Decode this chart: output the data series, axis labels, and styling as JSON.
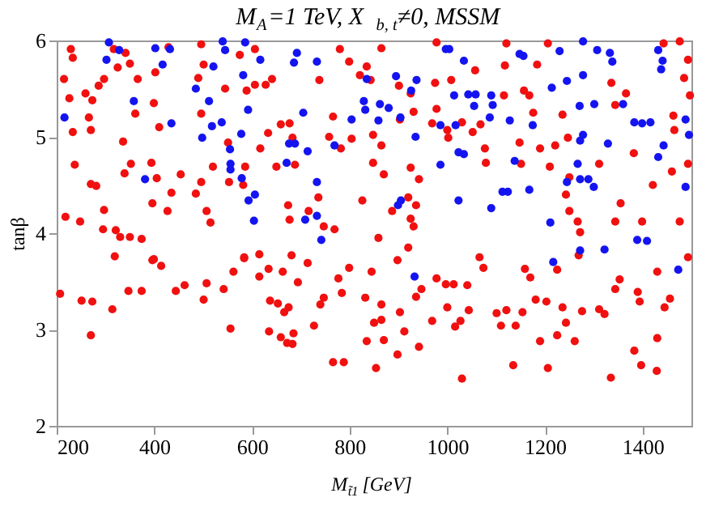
{
  "chart_data": {
    "type": "scatter",
    "title": "M$_{A}$=1 TeV, X$_{b, t}$≠0, MSSM",
    "xlabel": "M$_{t̃1}$ [GeV]",
    "ylabel": "tanβ",
    "xlim": [
      200,
      1500
    ],
    "xticks": [
      200,
      400,
      600,
      800,
      1000,
      1200,
      1400
    ],
    "ylim": [
      2,
      6
    ],
    "yticks": [
      2,
      3,
      4,
      5,
      6
    ],
    "grid": false,
    "legend": false,
    "marker": "circle",
    "series": [
      {
        "color": "#f01010",
        "x": [
          229,
          233,
          215,
          226,
          233,
          237,
          218,
          248,
          270,
          266,
          259,
          273,
          270,
          281,
          286,
          297,
          317,
          325,
          341,
          366,
          350,
          361,
          336,
          352,
          339,
          297,
          295,
          321,
          330,
          350,
          374,
          399,
          402,
          410,
          394,
          405,
          396,
          435,
          429,
          427,
          454,
          496,
          501,
          490,
          496,
          496,
          520,
          485,
          507,
          515,
          545,
          551,
          553,
          575,
          589,
          606,
          606,
          628,
          617,
          586,
          582,
          641,
          633,
          659,
          677,
          683,
          688,
          650,
          674,
          677,
          716,
          736,
          738,
          758,
          782,
          747,
          780,
          799,
          821,
          766,
          804,
          826,
          843,
          769,
          319,
          399,
          584,
          615,
          681,
          865,
          835,
          901,
          925,
          903,
          931,
          848,
          865,
          848,
          870,
          925,
          942,
          920,
          936,
          925,
          859,
          887,
          931,
          978,
          975,
          978,
          969,
          1002,
          1008,
          1000,
          1030,
          1052,
          1057,
          1068,
          1077,
          1079,
          1121,
          1118,
          1116,
          1157,
          1168,
          1148,
          1151,
          1176,
          1184,
          1190,
          1206,
          1221,
          1210,
          1236,
          1247,
          1250,
          1243,
          1250,
          1267,
          1272,
          1311,
          1336,
          1366,
          1344,
          1344,
          1355,
          1382,
          1399,
          1443,
          1476,
          1463,
          1465,
          1493,
          1485,
          1497,
          1493,
          1476,
          1460,
          1421,
          207,
          251,
          273,
          270,
          314,
          347,
          374,
          396,
          414,
          444,
          462,
          501,
          507,
          542,
          556,
          562,
          584,
          615,
          634,
          637,
          653,
          663,
          635,
          659,
          666,
          675,
          672,
          683,
          685,
          694,
          714,
          727,
          740,
          747,
          766,
          777,
          784,
          788,
          799,
          832,
          835,
          850,
          854,
          845,
          865,
          870,
          865,
          898,
          920,
          903,
          912,
          898,
          936,
          947,
          942,
          969,
          978,
          997,
          1000,
          1013,
          1016,
          1027,
          1030,
          1041,
          1044,
          1066,
          1074,
          1101,
          1110,
          1121,
          1135,
          1140,
          1154,
          1159,
          1170,
          1181,
          1190,
          1203,
          1206,
          1225,
          1236,
          1243,
          1225,
          1261,
          1269,
          1276,
          1311,
          1322,
          1335,
          1344,
          1353,
          1383,
          1390,
          1394,
          1397,
          1430,
          1430,
          1429,
          1445,
          1456,
          1493
        ],
        "values": [
          5.91,
          5.82,
          5.6,
          5.4,
          5.05,
          4.71,
          4.17,
          4.12,
          5.07,
          5.2,
          5.45,
          5.38,
          4.51,
          4.49,
          5.53,
          5.6,
          5.91,
          5.72,
          5.87,
          5.6,
          5.76,
          5.24,
          4.95,
          4.72,
          4.62,
          4.24,
          4.04,
          4.03,
          3.96,
          3.96,
          3.94,
          5.35,
          5.67,
          5.1,
          4.73,
          4.57,
          4.31,
          4.42,
          5.93,
          4.23,
          4.61,
          5.96,
          5.75,
          5.61,
          5.24,
          4.53,
          4.69,
          4.41,
          4.23,
          4.11,
          5.5,
          4.94,
          4.53,
          5.85,
          5.48,
          5.91,
          5.54,
          5.54,
          4.88,
          4.69,
          4.5,
          5.6,
          5.04,
          5.13,
          5.14,
          4.99,
          4.71,
          4.69,
          4.29,
          4.14,
          4.23,
          4.37,
          5.59,
          5.0,
          4.88,
          4.07,
          5.91,
          5.78,
          5.64,
          5.21,
          4.98,
          4.34,
          5.59,
          4.04,
          3.76,
          3.73,
          3.74,
          3.78,
          3.77,
          5.92,
          5.73,
          5.53,
          5.45,
          5.18,
          5.26,
          5.02,
          4.91,
          4.73,
          4.61,
          4.68,
          4.56,
          4.37,
          4.29,
          4.15,
          3.95,
          4.23,
          4.07,
          5.98,
          5.56,
          5.29,
          5.14,
          4.99,
          5.59,
          5.07,
          5.15,
          5.05,
          5.69,
          5.13,
          4.88,
          4.73,
          5.97,
          5.74,
          5.43,
          5.48,
          5.43,
          4.94,
          4.72,
          5.25,
          5.75,
          4.88,
          5.97,
          4.91,
          4.69,
          5.23,
          4.99,
          4.58,
          4.4,
          4.23,
          4.12,
          4.01,
          4.72,
          5.56,
          5.45,
          5.33,
          4.12,
          4.31,
          4.83,
          4.12,
          5.97,
          5.99,
          5.22,
          5.07,
          5.8,
          5.61,
          5.43,
          4.72,
          4.12,
          4.64,
          4.5,
          3.37,
          3.3,
          3.29,
          2.94,
          3.21,
          3.4,
          3.4,
          3.72,
          3.66,
          3.4,
          3.46,
          3.31,
          3.48,
          3.42,
          3.01,
          3.6,
          3.75,
          3.55,
          3.63,
          3.3,
          3.27,
          3.6,
          2.98,
          2.92,
          3.18,
          3.23,
          2.86,
          2.85,
          2.96,
          3.49,
          3.69,
          3.04,
          3.26,
          3.33,
          2.66,
          3.53,
          3.38,
          2.66,
          3.64,
          3.33,
          2.88,
          3.07,
          2.6,
          3.6,
          3.1,
          2.89,
          3.26,
          3.72,
          3.85,
          3.18,
          2.98,
          2.74,
          3.34,
          3.42,
          2.82,
          3.09,
          3.53,
          3.47,
          3.23,
          3.47,
          3.03,
          3.09,
          2.49,
          3.46,
          3.2,
          3.75,
          3.64,
          3.17,
          3.04,
          3.2,
          2.63,
          3.04,
          3.18,
          3.63,
          3.54,
          3.31,
          2.88,
          3.29,
          2.6,
          3.62,
          3.23,
          3.07,
          2.94,
          2.88,
          3.77,
          3.19,
          3.21,
          3.16,
          2.5,
          3.42,
          3.52,
          2.78,
          3.39,
          3.29,
          2.63,
          3.6,
          2.91,
          2.57,
          3.23,
          3.32,
          3.75
        ]
      },
      {
        "color": "#1414f0",
        "x": [
          307,
          328,
          302,
          402,
          417,
          432,
          485,
          521,
          512,
          545,
          540,
          582,
          586,
          617,
          592,
          538,
          518,
          498,
          578,
          555,
          556,
          556,
          381,
          579,
          593,
          606,
          604,
          216,
          435,
          358,
          671,
          676,
          688,
          686,
          692,
          733,
          705,
          714,
          733,
          733,
          709,
          742,
          769,
          804,
          829,
          835,
          997,
          1004,
          1034,
          1148,
          1156,
          1230,
          1278,
          1307,
          1333,
          1338,
          1432,
          1441,
          1438,
          1278,
          1245,
          1214,
          895,
          937,
          926,
          1014,
          1043,
          1058,
          1055,
          1090,
          1093,
          862,
          880,
          832,
          859,
          904,
          986,
          1017,
          1087,
          1128,
          1175,
          1271,
          1301,
          1360,
          1383,
          1399,
          1416,
          1329,
          1278,
          1272,
          1443,
          1432,
          1488,
          1495,
          935,
          1023,
          1034,
          986,
          1138,
          1267,
          1272,
          1289,
          1245,
          1300,
          1488,
          1168,
          1124,
          1113,
          1023,
          1090,
          905,
          899,
          1211,
          1272,
          1389,
          1409,
          933,
          1217,
          1473,
          1322
        ],
        "values": [
          5.98,
          5.9,
          5.8,
          5.92,
          5.75,
          5.91,
          5.5,
          5.73,
          5.37,
          5.9,
          5.99,
          5.64,
          5.98,
          5.8,
          5.28,
          5.15,
          5.11,
          4.99,
          5.03,
          4.87,
          4.72,
          4.66,
          4.56,
          4.57,
          4.34,
          4.4,
          4.13,
          5.2,
          5.14,
          5.37,
          4.73,
          4.93,
          4.93,
          5.77,
          5.87,
          5.78,
          5.25,
          4.85,
          4.53,
          4.18,
          4.14,
          3.93,
          4.91,
          5.18,
          5.37,
          5.6,
          5.91,
          5.91,
          5.79,
          5.86,
          5.84,
          5.89,
          5.99,
          5.9,
          5.87,
          5.78,
          5.9,
          5.79,
          5.7,
          5.64,
          5.58,
          5.51,
          5.63,
          5.59,
          5.48,
          5.43,
          5.44,
          5.44,
          5.32,
          5.43,
          5.33,
          5.34,
          5.3,
          5.28,
          5.17,
          5.2,
          5.12,
          5.12,
          5.2,
          5.17,
          5.12,
          5.32,
          5.34,
          5.34,
          5.15,
          5.14,
          5.15,
          4.93,
          5.02,
          4.96,
          4.91,
          4.79,
          5.18,
          5.02,
          5.0,
          4.84,
          4.82,
          4.71,
          4.75,
          4.72,
          4.56,
          4.56,
          4.53,
          4.48,
          4.48,
          4.45,
          4.43,
          4.43,
          4.34,
          4.26,
          4.34,
          4.29,
          4.11,
          3.82,
          3.93,
          3.92,
          3.55,
          3.7,
          3.62,
          3.83
        ]
      }
    ]
  }
}
